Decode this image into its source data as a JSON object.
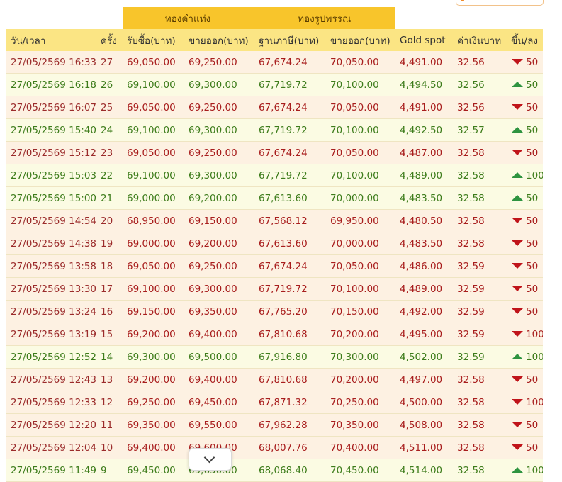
{
  "groups": {
    "bar": "ทองคำแท่ง",
    "ornament": "ทองรูปพรรณ"
  },
  "columns": [
    "วัน/เวลา",
    "ครั้ง",
    "รับซื้อ(บาท)",
    "ขายออก(บาท)",
    "ฐานภาษี(บาท)",
    "ขายออก(บาท)",
    "Gold spot",
    "ค่าเงินบาท",
    "ขึ้น/ลง"
  ],
  "rows": [
    {
      "time": "27/05/2569 16:33",
      "n": "27",
      "bar_buy": "69,050.00",
      "bar_sell": "69,250.00",
      "base": "67,674.24",
      "orn_sell": "70,050.00",
      "spot": "4,491.00",
      "thb": "32.56",
      "dir": "down",
      "chg": "50"
    },
    {
      "time": "27/05/2569 16:18",
      "n": "26",
      "bar_buy": "69,100.00",
      "bar_sell": "69,300.00",
      "base": "67,719.72",
      "orn_sell": "70,100.00",
      "spot": "4,494.50",
      "thb": "32.56",
      "dir": "up",
      "chg": "50"
    },
    {
      "time": "27/05/2569 16:07",
      "n": "25",
      "bar_buy": "69,050.00",
      "bar_sell": "69,250.00",
      "base": "67,674.24",
      "orn_sell": "70,050.00",
      "spot": "4,491.00",
      "thb": "32.56",
      "dir": "down",
      "chg": "50"
    },
    {
      "time": "27/05/2569 15:40",
      "n": "24",
      "bar_buy": "69,100.00",
      "bar_sell": "69,300.00",
      "base": "67,719.72",
      "orn_sell": "70,100.00",
      "spot": "4,492.50",
      "thb": "32.57",
      "dir": "up",
      "chg": "50"
    },
    {
      "time": "27/05/2569 15:12",
      "n": "23",
      "bar_buy": "69,050.00",
      "bar_sell": "69,250.00",
      "base": "67,674.24",
      "orn_sell": "70,050.00",
      "spot": "4,487.00",
      "thb": "32.58",
      "dir": "down",
      "chg": "50"
    },
    {
      "time": "27/05/2569 15:03",
      "n": "22",
      "bar_buy": "69,100.00",
      "bar_sell": "69,300.00",
      "base": "67,719.72",
      "orn_sell": "70,100.00",
      "spot": "4,489.00",
      "thb": "32.58",
      "dir": "up",
      "chg": "100"
    },
    {
      "time": "27/05/2569 15:00",
      "n": "21",
      "bar_buy": "69,000.00",
      "bar_sell": "69,200.00",
      "base": "67,613.60",
      "orn_sell": "70,000.00",
      "spot": "4,483.50",
      "thb": "32.58",
      "dir": "up",
      "chg": "50"
    },
    {
      "time": "27/05/2569 14:54",
      "n": "20",
      "bar_buy": "68,950.00",
      "bar_sell": "69,150.00",
      "base": "67,568.12",
      "orn_sell": "69,950.00",
      "spot": "4,480.50",
      "thb": "32.58",
      "dir": "down",
      "chg": "50"
    },
    {
      "time": "27/05/2569 14:38",
      "n": "19",
      "bar_buy": "69,000.00",
      "bar_sell": "69,200.00",
      "base": "67,613.60",
      "orn_sell": "70,000.00",
      "spot": "4,483.50",
      "thb": "32.58",
      "dir": "down",
      "chg": "50"
    },
    {
      "time": "27/05/2569 13:58",
      "n": "18",
      "bar_buy": "69,050.00",
      "bar_sell": "69,250.00",
      "base": "67,674.24",
      "orn_sell": "70,050.00",
      "spot": "4,486.00",
      "thb": "32.59",
      "dir": "down",
      "chg": "50"
    },
    {
      "time": "27/05/2569 13:30",
      "n": "17",
      "bar_buy": "69,100.00",
      "bar_sell": "69,300.00",
      "base": "67,719.72",
      "orn_sell": "70,100.00",
      "spot": "4,489.00",
      "thb": "32.59",
      "dir": "down",
      "chg": "50"
    },
    {
      "time": "27/05/2569 13:24",
      "n": "16",
      "bar_buy": "69,150.00",
      "bar_sell": "69,350.00",
      "base": "67,765.20",
      "orn_sell": "70,150.00",
      "spot": "4,492.00",
      "thb": "32.59",
      "dir": "down",
      "chg": "50"
    },
    {
      "time": "27/05/2569 13:19",
      "n": "15",
      "bar_buy": "69,200.00",
      "bar_sell": "69,400.00",
      "base": "67,810.68",
      "orn_sell": "70,200.00",
      "spot": "4,495.00",
      "thb": "32.59",
      "dir": "down",
      "chg": "100"
    },
    {
      "time": "27/05/2569 12:52",
      "n": "14",
      "bar_buy": "69,300.00",
      "bar_sell": "69,500.00",
      "base": "67,916.80",
      "orn_sell": "70,300.00",
      "spot": "4,502.00",
      "thb": "32.59",
      "dir": "up",
      "chg": "100"
    },
    {
      "time": "27/05/2569 12:43",
      "n": "13",
      "bar_buy": "69,200.00",
      "bar_sell": "69,400.00",
      "base": "67,810.68",
      "orn_sell": "70,200.00",
      "spot": "4,497.00",
      "thb": "32.58",
      "dir": "down",
      "chg": "50"
    },
    {
      "time": "27/05/2569 12:33",
      "n": "12",
      "bar_buy": "69,250.00",
      "bar_sell": "69,450.00",
      "base": "67,871.32",
      "orn_sell": "70,250.00",
      "spot": "4,500.00",
      "thb": "32.58",
      "dir": "down",
      "chg": "100"
    },
    {
      "time": "27/05/2569 12:20",
      "n": "11",
      "bar_buy": "69,350.00",
      "bar_sell": "69,550.00",
      "base": "67,962.28",
      "orn_sell": "70,350.00",
      "spot": "4,508.00",
      "thb": "32.58",
      "dir": "down",
      "chg": "50"
    },
    {
      "time": "27/05/2569 12:04",
      "n": "10",
      "bar_buy": "69,400.00",
      "bar_sell": "69,600.00",
      "base": "68,007.76",
      "orn_sell": "70,400.00",
      "spot": "4,511.00",
      "thb": "32.58",
      "dir": "down",
      "chg": "50"
    },
    {
      "time": "27/05/2569 11:49",
      "n": "9",
      "bar_buy": "69,450.00",
      "bar_sell": "69,650.00",
      "base": "68,068.40",
      "orn_sell": "70,450.00",
      "spot": "4,514.00",
      "thb": "32.58",
      "dir": "up",
      "chg": "100"
    }
  ],
  "colors": {
    "header_gold": "#f8c52b",
    "header_light": "#fbe584",
    "down": "#a81d1d",
    "up": "#3d7c1b",
    "down_arrow": "#c0141a",
    "up_arrow": "#2e9440"
  },
  "icons": {
    "down": "triangle-down-icon",
    "up": "triangle-up-icon",
    "scroll": "chevron-down-icon"
  }
}
